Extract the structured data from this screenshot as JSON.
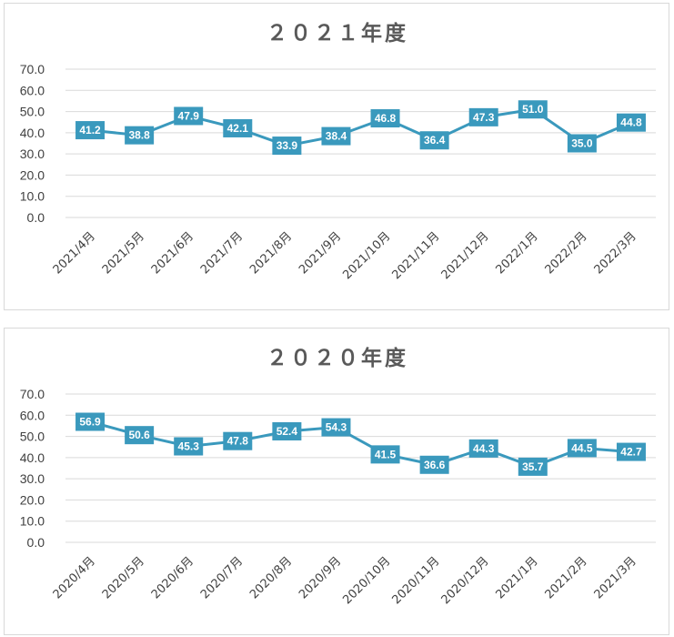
{
  "chart_data": [
    {
      "type": "line",
      "title": "２０２１年度",
      "categories": [
        "2021/4月",
        "2021/5月",
        "2021/6月",
        "2021/7月",
        "2021/8月",
        "2021/9月",
        "2021/10月",
        "2021/11月",
        "2021/12月",
        "2022/1月",
        "2022/2月",
        "2022/3月"
      ],
      "values": [
        41.2,
        38.8,
        47.9,
        42.1,
        33.9,
        38.4,
        46.8,
        36.4,
        47.3,
        51.0,
        35.0,
        44.8
      ],
      "value_labels": [
        "41.2",
        "38.8",
        "47.9",
        "42.1",
        "33.9",
        "38.4",
        "46.8",
        "36.4",
        "47.3",
        "51.0",
        "35.0",
        "44.8"
      ],
      "yticks": [
        "0.0",
        "10.0",
        "20.0",
        "30.0",
        "40.0",
        "50.0",
        "60.0",
        "70.0"
      ],
      "ylim": [
        0,
        70
      ],
      "grid": true,
      "legend": "none",
      "color": "#3a99bd"
    },
    {
      "type": "line",
      "title": "２０２０年度",
      "categories": [
        "2020/4月",
        "2020/5月",
        "2020/6月",
        "2020/7月",
        "2020/8月",
        "2020/9月",
        "2020/10月",
        "2020/11月",
        "2020/12月",
        "2021/1月",
        "2021/2月",
        "2021/3月"
      ],
      "values": [
        56.9,
        50.6,
        45.3,
        47.8,
        52.4,
        54.3,
        41.5,
        36.6,
        44.3,
        35.7,
        44.5,
        42.7
      ],
      "value_labels": [
        "56.9",
        "50.6",
        "45.3",
        "47.8",
        "52.4",
        "54.3",
        "41.5",
        "36.6",
        "44.3",
        "35.7",
        "44.5",
        "42.7"
      ],
      "yticks": [
        "0.0",
        "10.0",
        "20.0",
        "30.0",
        "40.0",
        "50.0",
        "60.0",
        "70.0"
      ],
      "ylim": [
        0,
        70
      ],
      "grid": true,
      "legend": "none",
      "color": "#3a99bd"
    }
  ]
}
